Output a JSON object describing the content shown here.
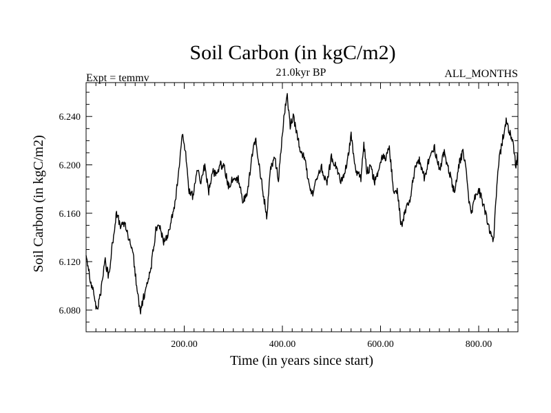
{
  "chart_data": {
    "type": "line",
    "title": "Soil Carbon (in kgC/m2)",
    "left_header": "Expt = temmv",
    "center_header": "21.0kyr BP",
    "right_header": "ALL_MONTHS",
    "xlabel": "Time (in years since start)",
    "ylabel": "Soil Carbon (in kgC/m2)",
    "xlim": [
      0,
      880
    ],
    "ylim": [
      6.062,
      6.268
    ],
    "x_ticks": [
      200,
      400,
      600,
      800
    ],
    "x_tick_labels": [
      "200.00",
      "400.00",
      "600.00",
      "800.00"
    ],
    "y_ticks": [
      6.08,
      6.12,
      6.16,
      6.2,
      6.24
    ],
    "y_tick_labels": [
      "6.080",
      "6.120",
      "6.160",
      "6.200",
      "6.240"
    ],
    "series": [
      {
        "name": "Soil Carbon",
        "color": "#000000",
        "x": [
          0,
          8,
          15,
          22,
          30,
          38,
          46,
          54,
          62,
          70,
          78,
          86,
          96,
          103,
          110,
          118,
          126,
          134,
          142,
          150,
          158,
          166,
          174,
          182,
          190,
          196,
          202,
          210,
          218,
          226,
          234,
          242,
          250,
          258,
          266,
          274,
          282,
          290,
          300,
          310,
          320,
          330,
          340,
          346,
          352,
          360,
          368,
          376,
          384,
          392,
          400,
          406,
          410,
          416,
          422,
          430,
          438,
          446,
          454,
          462,
          470,
          480,
          490,
          500,
          510,
          520,
          530,
          540,
          550,
          560,
          566,
          572,
          580,
          588,
          596,
          604,
          610,
          618,
          626,
          634,
          642,
          650,
          660,
          670,
          680,
          690,
          700,
          710,
          720,
          730,
          740,
          750,
          760,
          768,
          774,
          780,
          786,
          792,
          800,
          810,
          820,
          830,
          840,
          850,
          856,
          862,
          870,
          876,
          880
        ],
        "y": [
          6.128,
          6.106,
          6.094,
          6.08,
          6.094,
          6.122,
          6.108,
          6.136,
          6.16,
          6.15,
          6.152,
          6.14,
          6.126,
          6.1,
          6.078,
          6.092,
          6.102,
          6.12,
          6.146,
          6.15,
          6.136,
          6.14,
          6.154,
          6.17,
          6.2,
          6.224,
          6.212,
          6.178,
          6.174,
          6.196,
          6.186,
          6.2,
          6.178,
          6.196,
          6.19,
          6.2,
          6.198,
          6.182,
          6.19,
          6.188,
          6.17,
          6.18,
          6.214,
          6.22,
          6.2,
          6.18,
          6.156,
          6.198,
          6.206,
          6.188,
          6.226,
          6.25,
          6.256,
          6.232,
          6.24,
          6.226,
          6.208,
          6.206,
          6.184,
          6.176,
          6.188,
          6.198,
          6.184,
          6.206,
          6.198,
          6.186,
          6.198,
          6.224,
          6.196,
          6.188,
          6.218,
          6.194,
          6.198,
          6.186,
          6.196,
          6.206,
          6.206,
          6.214,
          6.18,
          6.178,
          6.15,
          6.16,
          6.172,
          6.196,
          6.204,
          6.188,
          6.208,
          6.214,
          6.196,
          6.21,
          6.194,
          6.178,
          6.2,
          6.212,
          6.198,
          6.168,
          6.16,
          6.172,
          6.18,
          6.166,
          6.15,
          6.136,
          6.2,
          6.224,
          6.236,
          6.228,
          6.218,
          6.198,
          6.21
        ],
        "noise_amplitude": 0.0035
      }
    ]
  }
}
